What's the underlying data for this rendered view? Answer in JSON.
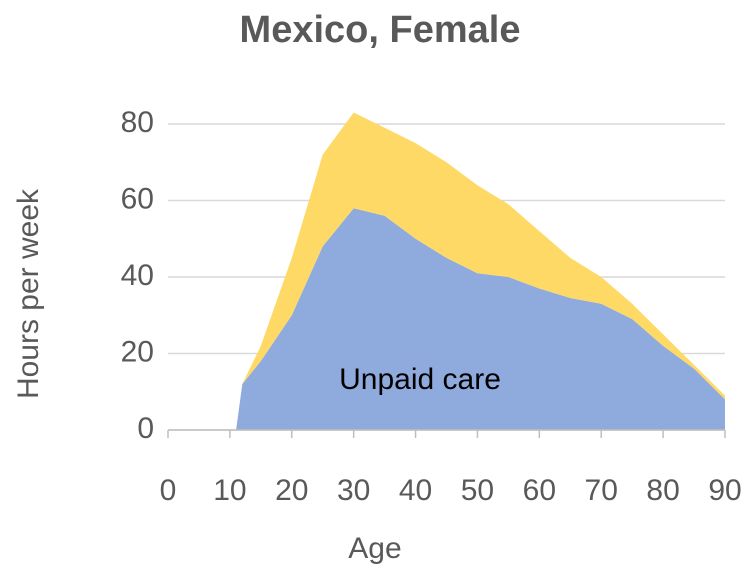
{
  "chart_data": {
    "type": "stacked-area",
    "title": "Mexico, Female",
    "x_label": "Age",
    "y_label": "Hours per week",
    "x": [
      11,
      12,
      15,
      20,
      25,
      30,
      35,
      40,
      45,
      50,
      55,
      60,
      65,
      70,
      75,
      80,
      85,
      90
    ],
    "series": [
      {
        "name": "Unpaid care",
        "color": "#8faadc",
        "values": [
          0,
          12,
          18,
          30,
          48,
          58,
          56,
          50,
          45,
          41,
          40,
          37,
          34.5,
          33,
          29,
          22,
          16,
          8
        ]
      },
      {
        "color": "#ffd966",
        "values": [
          0,
          0,
          4,
          15,
          24,
          25,
          23,
          25,
          25,
          23,
          19,
          15,
          10.5,
          7,
          4,
          3,
          1,
          1
        ]
      }
    ],
    "xlim": [
      0,
      90
    ],
    "xticks": [
      0,
      10,
      20,
      30,
      40,
      50,
      60,
      70,
      80,
      90
    ],
    "ylim": [
      0,
      80
    ],
    "yticks": [
      0,
      20,
      40,
      60,
      80
    ],
    "grid": true
  }
}
